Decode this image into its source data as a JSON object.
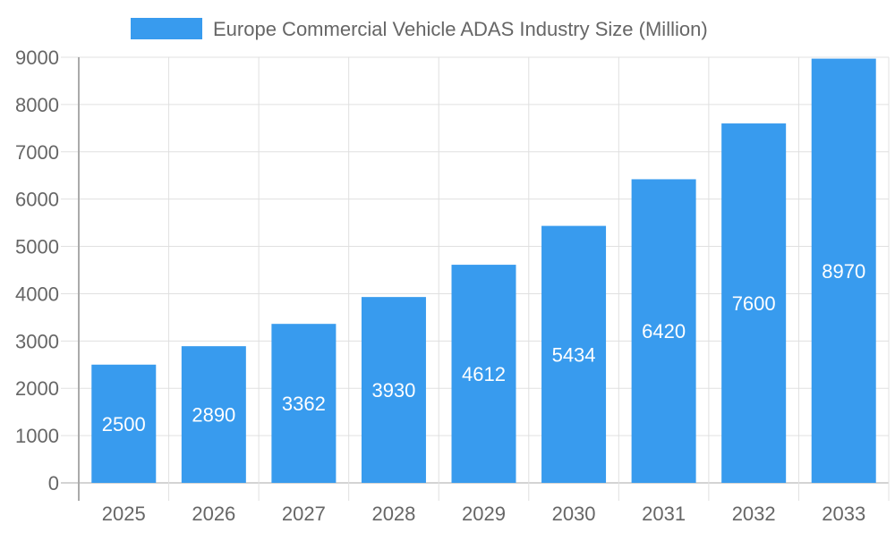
{
  "chart_data": {
    "type": "bar",
    "categories": [
      "2025",
      "2026",
      "2027",
      "2028",
      "2029",
      "2030",
      "2031",
      "2032",
      "2033"
    ],
    "series": [
      {
        "name": "Europe Commercial Vehicle ADAS Industry Size (Million)",
        "values": [
          2500,
          2890,
          3362,
          3930,
          4612,
          5434,
          6420,
          7600,
          8970
        ]
      }
    ],
    "ylim": [
      0,
      9000
    ],
    "yticks": [
      0,
      1000,
      2000,
      3000,
      4000,
      5000,
      6000,
      7000,
      8000,
      9000
    ],
    "grid": true,
    "legend": "top",
    "data_labels": true,
    "colors": {
      "bar": "#389BEE",
      "grid": "#e0e0e0",
      "text": "#666666"
    }
  }
}
